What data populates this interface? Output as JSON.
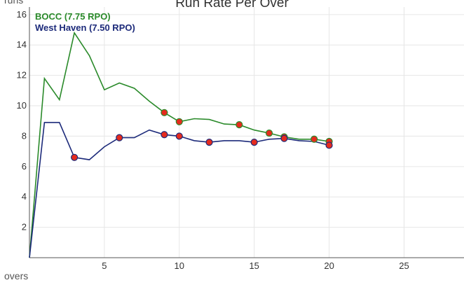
{
  "chart_data": {
    "type": "line",
    "title": "Run Rate Per Over",
    "ylabel": "runs",
    "xlabel": "overs",
    "xlim": [
      0,
      29
    ],
    "ylim": [
      0,
      16.5
    ],
    "xticks": [
      5,
      10,
      15,
      20,
      25
    ],
    "yticks": [
      2,
      4,
      6,
      8,
      10,
      12,
      14,
      16
    ],
    "grid": true,
    "legend": "top-left",
    "series": [
      {
        "name": "BOCC (7.75 RPO)",
        "color": "#2a8a2a",
        "x": [
          0,
          1,
          2,
          3,
          4,
          5,
          6,
          7,
          8,
          9,
          10,
          11,
          12,
          13,
          14,
          15,
          16,
          17,
          18,
          19,
          20
        ],
        "values": [
          0,
          11.8,
          10.4,
          14.8,
          13.3,
          11.05,
          11.5,
          11.15,
          10.3,
          9.55,
          8.95,
          9.15,
          9.1,
          8.8,
          8.75,
          8.4,
          8.2,
          7.95,
          7.8,
          7.8,
          7.65
        ],
        "markers": [
          9,
          10,
          14,
          16,
          17,
          19,
          20
        ]
      },
      {
        "name": "West Haven (7.50 RPO)",
        "color": "#1c2a7a",
        "x": [
          0,
          1,
          2,
          3,
          4,
          5,
          6,
          7,
          8,
          9,
          10,
          11,
          12,
          13,
          14,
          15,
          16,
          17,
          18,
          19,
          20
        ],
        "values": [
          0,
          8.9,
          8.9,
          6.6,
          6.45,
          7.3,
          7.9,
          7.9,
          8.4,
          8.1,
          8.0,
          7.7,
          7.6,
          7.7,
          7.7,
          7.6,
          7.8,
          7.85,
          7.7,
          7.65,
          7.4
        ],
        "markers": [
          3,
          6,
          9,
          10,
          12,
          15,
          17,
          20
        ]
      }
    ],
    "marker_color": "#e52b1e"
  }
}
